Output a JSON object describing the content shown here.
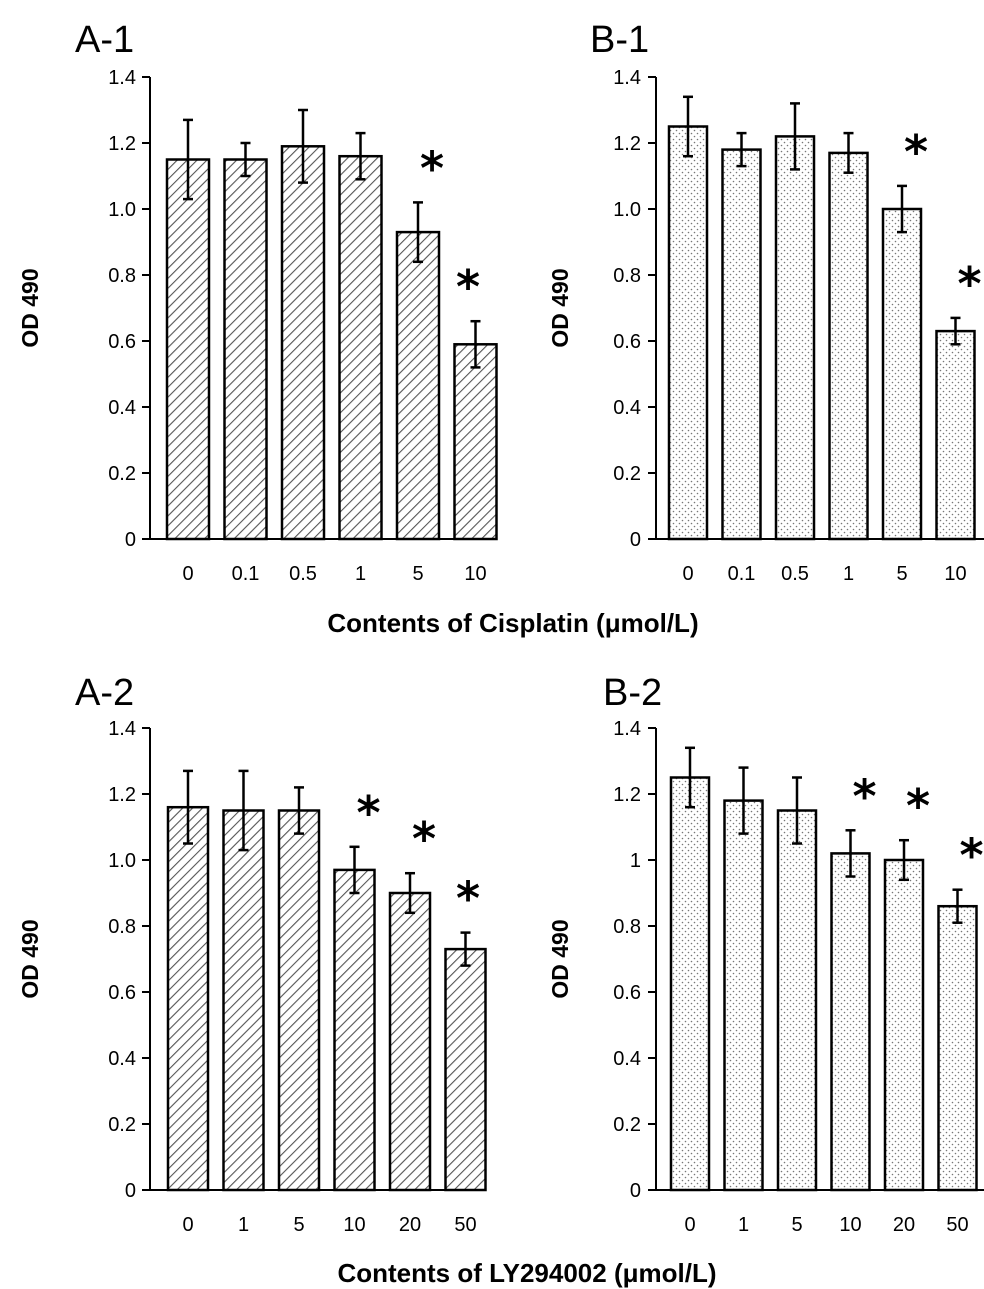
{
  "figure": {
    "xlabel_top": "Contents of Cisplatin (μmol/L)",
    "xlabel_bottom": "Contents of LY294002 (μmol/L)"
  },
  "chart_data": [
    {
      "type": "bar",
      "title": "A-1",
      "ylabel": "OD 490",
      "xlabel": "Contents of Cisplatin (μmol/L)",
      "ylim": [
        0,
        1.4
      ],
      "yticks": [
        "0",
        "0.2",
        "0.4",
        "0.6",
        "0.8",
        "1.0",
        "1.2",
        "1.4"
      ],
      "categories": [
        "0",
        "0.1",
        "0.5",
        "1",
        "5",
        "10"
      ],
      "values": [
        1.15,
        1.15,
        1.19,
        1.16,
        0.93,
        0.59
      ],
      "errors": [
        0.12,
        0.05,
        0.11,
        0.07,
        0.09,
        0.07
      ],
      "significant": [
        false,
        false,
        false,
        false,
        true,
        true
      ],
      "marker": "*",
      "pattern": "hatched"
    },
    {
      "type": "bar",
      "title": "B-1",
      "ylabel": "OD 490",
      "xlabel": "Contents of Cisplatin (μmol/L)",
      "ylim": [
        0,
        1.4
      ],
      "yticks": [
        "0",
        "0.2",
        "0.4",
        "0.6",
        "0.8",
        "1.0",
        "1.2",
        "1.4"
      ],
      "categories": [
        "0",
        "0.1",
        "0.5",
        "1",
        "5",
        "10"
      ],
      "values": [
        1.25,
        1.18,
        1.22,
        1.17,
        1.0,
        0.63
      ],
      "errors": [
        0.09,
        0.05,
        0.1,
        0.06,
        0.07,
        0.04
      ],
      "significant": [
        false,
        false,
        false,
        false,
        true,
        true
      ],
      "marker": "*",
      "pattern": "dotted"
    },
    {
      "type": "bar",
      "title": "A-2",
      "ylabel": "OD 490",
      "xlabel": "Contents of LY294002 (μmol/L)",
      "ylim": [
        0,
        1.4
      ],
      "yticks": [
        "0",
        "0.2",
        "0.4",
        "0.6",
        "0.8",
        "1.0",
        "1.2",
        "1.4"
      ],
      "categories": [
        "0",
        "1",
        "5",
        "10",
        "20",
        "50"
      ],
      "values": [
        1.16,
        1.15,
        1.15,
        0.97,
        0.9,
        0.73
      ],
      "errors": [
        0.11,
        0.12,
        0.07,
        0.07,
        0.06,
        0.05
      ],
      "significant": [
        false,
        false,
        false,
        true,
        true,
        true
      ],
      "marker": "*",
      "pattern": "hatched"
    },
    {
      "type": "bar",
      "title": "B-2",
      "ylabel": "OD 490",
      "xlabel": "Contents of LY294002 (μmol/L)",
      "ylim": [
        0,
        1.4
      ],
      "yticks": [
        "0",
        "0.2",
        "0.4",
        "0.6",
        "0.8",
        "1",
        "1.2",
        "1.4"
      ],
      "categories": [
        "0",
        "1",
        "5",
        "10",
        "20",
        "50"
      ],
      "values": [
        1.25,
        1.18,
        1.15,
        1.02,
        1.0,
        0.86
      ],
      "errors": [
        0.09,
        0.1,
        0.1,
        0.07,
        0.06,
        0.05
      ],
      "significant": [
        false,
        false,
        false,
        true,
        true,
        true
      ],
      "marker": "*",
      "pattern": "dotted"
    }
  ]
}
